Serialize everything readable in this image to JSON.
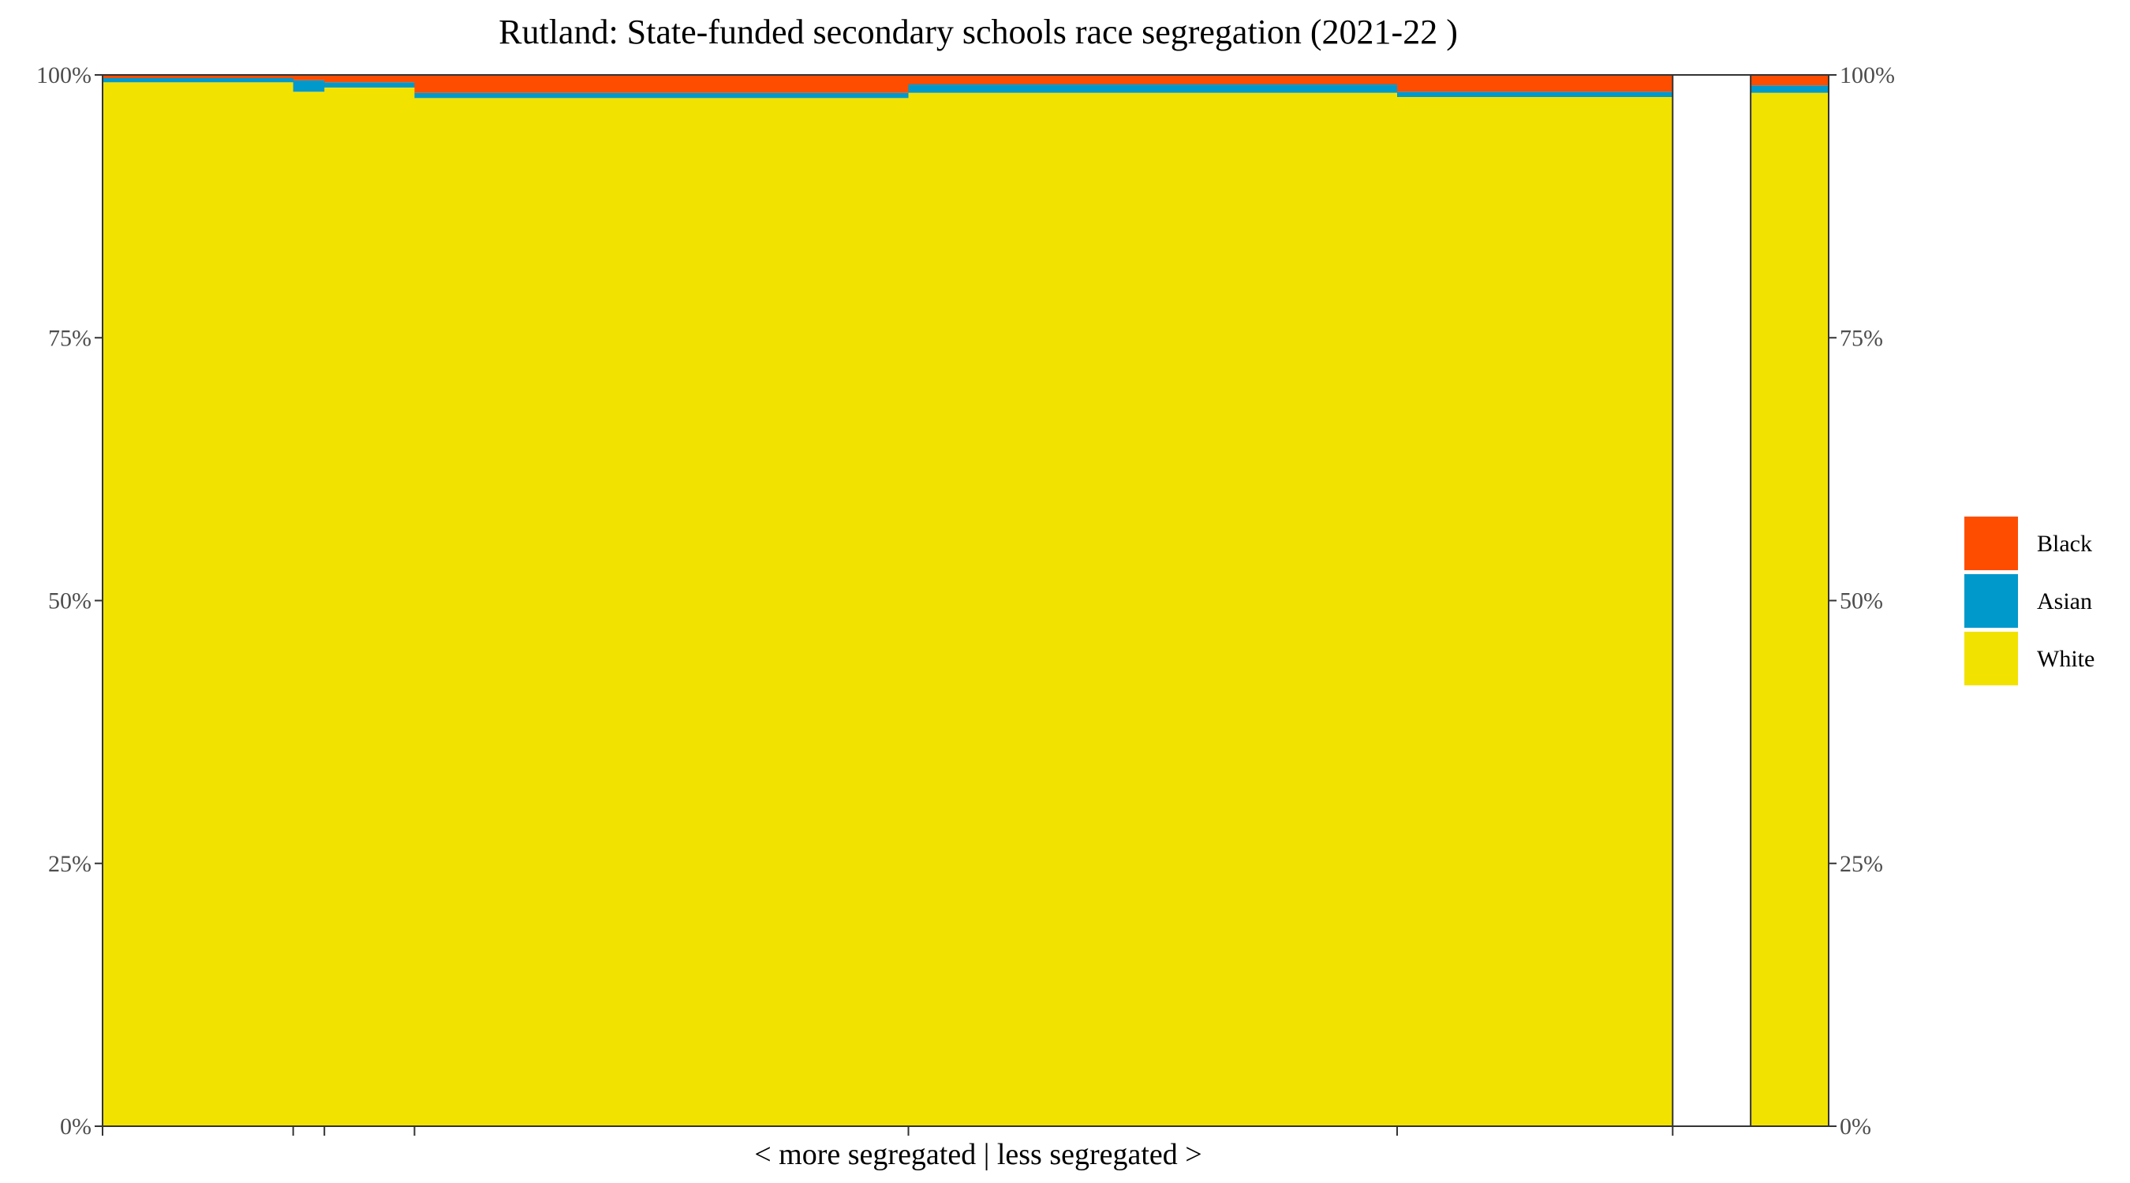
{
  "chart_data": {
    "type": "stacked-bar-marimekko",
    "title": "Rutland: State-funded secondary schools race segregation (2021-22 )",
    "xlabel": "< more segregated | less segregated >",
    "ylabel": "",
    "ylim": [
      0,
      100
    ],
    "y_ticks": [
      "0%",
      "25%",
      "50%",
      "75%",
      "100%"
    ],
    "y_tick_values": [
      0,
      25,
      50,
      75,
      100
    ],
    "legend": [
      {
        "name": "Black",
        "color": "#FF4D00"
      },
      {
        "name": "Asian",
        "color": "#0099CC"
      },
      {
        "name": "White",
        "color": "#F2E200"
      }
    ],
    "series_order": [
      "White",
      "Asian",
      "Black"
    ],
    "colors": {
      "White": "#F2E200",
      "Asian": "#0099CC",
      "Black": "#FF4D00",
      "Gap": "#FFFFFF"
    },
    "bars": [
      {
        "id": "school-1",
        "width": 11.0,
        "White": 99.3,
        "Asian": 0.4,
        "Black": 0.3
      },
      {
        "id": "school-2",
        "width": 1.8,
        "White": 98.4,
        "Asian": 1.1,
        "Black": 0.5
      },
      {
        "id": "school-3",
        "width": 5.2,
        "White": 98.8,
        "Asian": 0.5,
        "Black": 0.7
      },
      {
        "id": "school-4",
        "width": 28.5,
        "White": 97.8,
        "Asian": 0.5,
        "Black": 1.7
      },
      {
        "id": "school-5",
        "width": 28.2,
        "White": 98.3,
        "Asian": 0.8,
        "Black": 0.9
      },
      {
        "id": "school-6",
        "width": 15.9,
        "White": 97.9,
        "Asian": 0.5,
        "Black": 1.6
      },
      {
        "id": "gap",
        "width": 4.5,
        "gap": true
      },
      {
        "id": "total",
        "width": 4.5,
        "White": 98.3,
        "Asian": 0.7,
        "Black": 1.0
      }
    ]
  }
}
